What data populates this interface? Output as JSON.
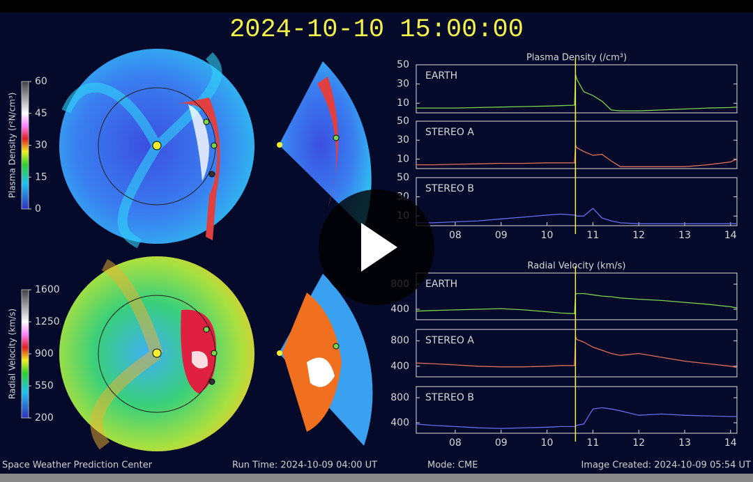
{
  "header": {
    "timestamp": "2024-10-10 15:00:00"
  },
  "footer": {
    "center": "Space Weather Prediction Center",
    "run_time": "Run Time: 2024-10-09 04:00 UT",
    "mode": "Mode: CME",
    "created": "Image Created: 2024-10-09 05:54 UT"
  },
  "colorbars": [
    {
      "label": "Plasma Density (r²N/cm³)",
      "range": [
        0,
        60
      ],
      "ticks": [
        60,
        45,
        30,
        15,
        0
      ]
    },
    {
      "label": "Radial Velocity (km/s)",
      "range": [
        200,
        1600
      ],
      "ticks": [
        1600,
        1250,
        900,
        550,
        200
      ]
    }
  ],
  "chart_data": [
    {
      "type": "line",
      "title": "Plasma Density (/cm³)",
      "label": "EARTH",
      "xlim": [
        7.15,
        14.14
      ],
      "ylim": [
        0,
        50
      ],
      "yticks": [
        10,
        30,
        50
      ],
      "marker_x": 10.62,
      "x": [
        7.15,
        7.5,
        8,
        8.5,
        9,
        9.5,
        10,
        10.3,
        10.6,
        10.62,
        10.65,
        10.8,
        11,
        11.2,
        11.4,
        11.6,
        12,
        12.5,
        13,
        13.5,
        14,
        14.14
      ],
      "series": [
        {
          "name": "EARTH",
          "color": "#7ad34a",
          "values": [
            5,
            5,
            5,
            5.5,
            6,
            6.5,
            7,
            7.5,
            8,
            40,
            35,
            22,
            18,
            12,
            3,
            2,
            2,
            3,
            4,
            5,
            5.5,
            6
          ]
        }
      ]
    },
    {
      "type": "line",
      "label": "STEREO A",
      "xlim": [
        7.15,
        14.14
      ],
      "ylim": [
        0,
        50
      ],
      "yticks": [
        10,
        30,
        50
      ],
      "marker_x": 10.62,
      "x": [
        7.15,
        7.5,
        8,
        8.5,
        9,
        9.5,
        10,
        10.3,
        10.6,
        10.62,
        10.65,
        10.8,
        11,
        11.2,
        11.4,
        11.6,
        12,
        12.5,
        13,
        13.5,
        14,
        14.14
      ],
      "series": [
        {
          "name": "STEREO A",
          "color": "#e0705a",
          "values": [
            4,
            4,
            4.5,
            5,
            5.5,
            5.5,
            6,
            6,
            6,
            25,
            22,
            18,
            14,
            15,
            8,
            2,
            2,
            2,
            2,
            4,
            7,
            10
          ]
        }
      ]
    },
    {
      "type": "line",
      "label": "STEREO B",
      "xlim": [
        7.15,
        14.14
      ],
      "ylim": [
        0,
        50
      ],
      "yticks": [
        10,
        30,
        50
      ],
      "marker_x": 10.62,
      "x": [
        7.15,
        7.5,
        8,
        8.5,
        9,
        9.5,
        10,
        10.3,
        10.6,
        10.62,
        10.65,
        10.8,
        11,
        11.2,
        11.4,
        11.6,
        12,
        12.5,
        13,
        13.5,
        14,
        14.14
      ],
      "xticks": [
        {
          "value": 8,
          "label": "08"
        },
        {
          "value": 9,
          "label": "09"
        },
        10,
        11,
        12,
        13,
        14
      ],
      "series": [
        {
          "name": "STEREO B",
          "color": "#6a6af0",
          "values": [
            3,
            3,
            4,
            5,
            7,
            9,
            11,
            12,
            11,
            11,
            10,
            10,
            18,
            8,
            5,
            3,
            2,
            2,
            2,
            2,
            2,
            2
          ]
        }
      ]
    },
    {
      "type": "line",
      "title": "Radial Velocity (km/s)",
      "label": "EARTH",
      "xlim": [
        7.15,
        14.14
      ],
      "ylim": [
        233,
        978
      ],
      "yticks": [
        400,
        800
      ],
      "marker_x": 10.62,
      "x": [
        7.15,
        7.5,
        8,
        8.5,
        9,
        9.5,
        10,
        10.3,
        10.6,
        10.62,
        10.65,
        10.8,
        11,
        11.2,
        11.4,
        11.6,
        12,
        12.5,
        13,
        13.5,
        14,
        14.14
      ],
      "series": [
        {
          "name": "EARTH",
          "color": "#7ad34a",
          "values": [
            370,
            380,
            390,
            400,
            410,
            390,
            360,
            340,
            330,
            640,
            650,
            650,
            630,
            610,
            600,
            580,
            560,
            540,
            510,
            480,
            440,
            420
          ]
        }
      ]
    },
    {
      "type": "line",
      "label": "STEREO A",
      "xlim": [
        7.15,
        14.14
      ],
      "ylim": [
        233,
        978
      ],
      "yticks": [
        400,
        800
      ],
      "marker_x": 10.62,
      "x": [
        7.15,
        7.5,
        8,
        8.5,
        9,
        9.5,
        10,
        10.3,
        10.6,
        10.62,
        10.65,
        10.8,
        11,
        11.2,
        11.4,
        11.6,
        12,
        12.5,
        13,
        13.5,
        14,
        14.14
      ],
      "series": [
        {
          "name": "STEREO A",
          "color": "#e0705a",
          "values": [
            450,
            440,
            420,
            400,
            390,
            390,
            400,
            410,
            410,
            870,
            820,
            780,
            700,
            650,
            600,
            570,
            600,
            540,
            480,
            440,
            400,
            380
          ]
        }
      ]
    },
    {
      "type": "line",
      "label": "STEREO B",
      "xlim": [
        7.15,
        14.14
      ],
      "ylim": [
        233,
        978
      ],
      "yticks": [
        400,
        800
      ],
      "marker_x": 10.62,
      "x": [
        7.15,
        7.5,
        8,
        8.5,
        9,
        9.5,
        10,
        10.3,
        10.6,
        10.62,
        10.65,
        10.8,
        11,
        11.2,
        11.4,
        11.6,
        12,
        12.5,
        13,
        13.5,
        14,
        14.14
      ],
      "xticks": [
        {
          "value": 8,
          "label": "08"
        },
        {
          "value": 9,
          "label": "09"
        },
        10,
        11,
        12,
        13,
        14
      ],
      "series": [
        {
          "name": "STEREO B",
          "color": "#6a6af0",
          "values": [
            380,
            360,
            340,
            320,
            310,
            320,
            330,
            340,
            340,
            340,
            360,
            380,
            620,
            640,
            620,
            590,
            520,
            540,
            520,
            510,
            500,
            500
          ]
        }
      ]
    }
  ]
}
